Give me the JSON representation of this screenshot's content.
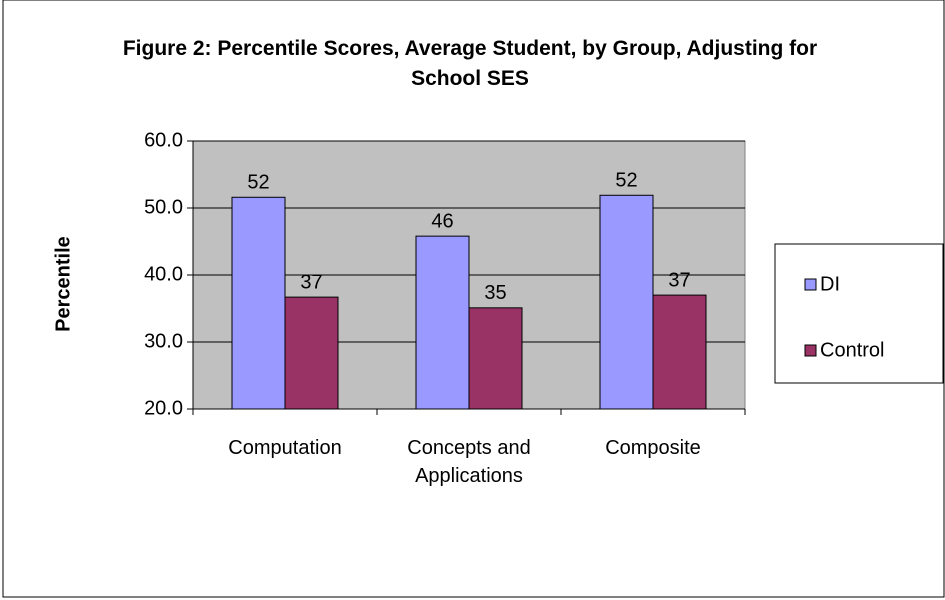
{
  "chart_data": {
    "type": "bar",
    "title": "Figure 2: Percentile Scores, Average Student, by Group, Adjusting for School SES",
    "y_label": "Percentile",
    "categories": [
      "Computation",
      "Concepts and Applications",
      "Composite"
    ],
    "series": [
      {
        "name": "DI",
        "color": "#9999ff",
        "values": [
          51.6,
          45.8,
          51.9
        ],
        "value_labels": [
          "52",
          "46",
          "52"
        ]
      },
      {
        "name": "Control",
        "color": "#993366",
        "values": [
          36.7,
          35.1,
          37.0
        ],
        "value_labels": [
          "37",
          "35",
          "37"
        ]
      }
    ],
    "ylim": [
      20,
      60
    ],
    "yticks": [
      {
        "value": 20,
        "label": "20.0"
      },
      {
        "value": 30,
        "label": "30.0"
      },
      {
        "value": 40,
        "label": "40.0"
      },
      {
        "value": 50,
        "label": "50.0"
      },
      {
        "value": 60,
        "label": "60.0"
      }
    ],
    "grid": true,
    "plot_background": "#c0c0c0",
    "legend_position": "right"
  }
}
